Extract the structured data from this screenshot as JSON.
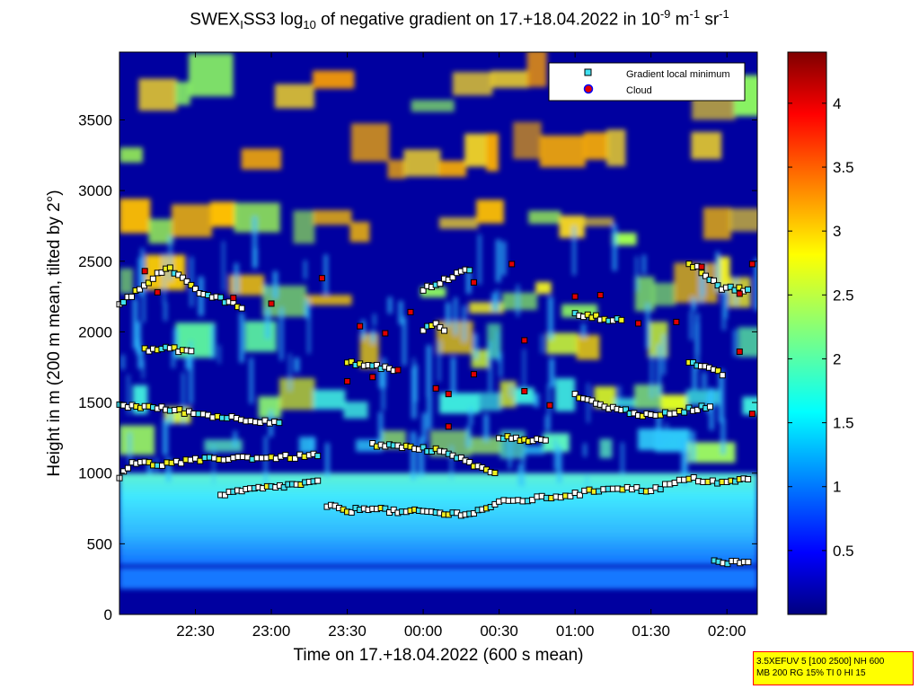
{
  "title": {
    "part1": "SWEX",
    "sub1": "I",
    "part2": "SS3 log",
    "sub2": "10",
    "part3": " of negative gradient on 17.+18.04.2022 in 10",
    "sup1": "-9",
    "part4": " m",
    "sup2": "-1",
    "part5": " sr",
    "sup3": "-1"
  },
  "info_box": {
    "line1": "3.5XEFUV 5 [100 2500] NH 600",
    "line2": "MB 200 RG 15% TI 0 HI 15"
  },
  "colors": {
    "background_field": "#0000a0",
    "cyan_band": "#40e0f0",
    "yellow_layer": "#f0f020",
    "gradient_marker": "#40e0f0",
    "cloud_marker": "#e00000",
    "cloud_marker_edge": "#0000ff"
  },
  "chart_data": {
    "type": "heatmap",
    "xlabel": "Time on 17.+18.04.2022 (600 s mean)",
    "ylabel": "Height in m (200 m mean, tilted by 2°)",
    "x_tick_labels": [
      "22:30",
      "23:00",
      "23:30",
      "00:00",
      "00:30",
      "01:00",
      "01:30",
      "02:00"
    ],
    "x_tick_minutes": [
      0,
      30,
      60,
      90,
      120,
      150,
      180,
      210
    ],
    "xlim_minutes": [
      -30,
      222
    ],
    "y_ticks": [
      0,
      500,
      1000,
      1500,
      2000,
      2500,
      3000,
      3500
    ],
    "ylim": [
      0,
      3980
    ],
    "colorbar": {
      "ticks": [
        0.5,
        1,
        1.5,
        2,
        2.5,
        3,
        3.5,
        4
      ],
      "tick_labels": [
        "0.5",
        "1",
        "1.5",
        "2",
        "2.5",
        "3",
        "3.5",
        "4"
      ],
      "range": [
        0,
        4.4
      ],
      "colormap": "jet"
    },
    "legend": {
      "placement": "top-right",
      "entries": [
        "Gradient local minimum",
        "Cloud"
      ]
    },
    "gradient_minimum_tracks": [
      {
        "points": [
          [
            -30,
            980
          ],
          [
            -25,
            1080
          ],
          [
            -15,
            1060
          ],
          [
            0,
            1090
          ],
          [
            15,
            1110
          ],
          [
            30,
            1110
          ],
          [
            45,
            1120
          ],
          [
            50,
            1140
          ]
        ]
      },
      {
        "points": [
          [
            10,
            840
          ],
          [
            20,
            880
          ],
          [
            30,
            900
          ],
          [
            40,
            920
          ],
          [
            50,
            940
          ]
        ]
      },
      {
        "points": [
          [
            52,
            770
          ],
          [
            60,
            730
          ],
          [
            70,
            760
          ],
          [
            80,
            720
          ],
          [
            90,
            730
          ],
          [
            100,
            710
          ],
          [
            110,
            720
          ],
          [
            120,
            790
          ],
          [
            135,
            820
          ],
          [
            150,
            850
          ],
          [
            165,
            900
          ],
          [
            180,
            880
          ],
          [
            195,
            960
          ],
          [
            210,
            930
          ],
          [
            220,
            970
          ]
        ]
      },
      {
        "points": [
          [
            70,
            1200
          ],
          [
            80,
            1190
          ],
          [
            90,
            1170
          ],
          [
            100,
            1150
          ],
          [
            110,
            1050
          ],
          [
            120,
            1000
          ]
        ]
      },
      {
        "points": [
          [
            -30,
            2200
          ],
          [
            -22,
            2300
          ],
          [
            -15,
            2420
          ],
          [
            -10,
            2450
          ],
          [
            0,
            2290
          ],
          [
            10,
            2230
          ],
          [
            20,
            2160
          ]
        ]
      },
      {
        "points": [
          [
            -30,
            1480
          ],
          [
            -20,
            1470
          ],
          [
            -10,
            1450
          ],
          [
            5,
            1410
          ],
          [
            20,
            1380
          ],
          [
            35,
            1360
          ]
        ]
      },
      {
        "points": [
          [
            -20,
            1870
          ],
          [
            -10,
            1880
          ],
          [
            0,
            1860
          ]
        ]
      },
      {
        "points": [
          [
            60,
            1780
          ],
          [
            70,
            1760
          ],
          [
            80,
            1730
          ]
        ]
      },
      {
        "points": [
          [
            90,
            2020
          ],
          [
            95,
            2050
          ],
          [
            100,
            2000
          ]
        ]
      },
      {
        "points": [
          [
            150,
            2120
          ],
          [
            160,
            2100
          ],
          [
            170,
            2070
          ]
        ]
      },
      {
        "points": [
          [
            150,
            1560
          ],
          [
            160,
            1480
          ],
          [
            170,
            1440
          ],
          [
            180,
            1400
          ],
          [
            195,
            1450
          ],
          [
            205,
            1480
          ]
        ]
      },
      {
        "points": [
          [
            195,
            2490
          ],
          [
            200,
            2430
          ],
          [
            208,
            2310
          ],
          [
            220,
            2300
          ]
        ]
      },
      {
        "points": [
          [
            195,
            1780
          ],
          [
            203,
            1740
          ],
          [
            210,
            1690
          ]
        ]
      },
      {
        "points": [
          [
            205,
            380
          ],
          [
            212,
            370
          ],
          [
            220,
            370
          ]
        ]
      },
      {
        "points": [
          [
            90,
            2300
          ],
          [
            100,
            2380
          ],
          [
            110,
            2460
          ]
        ]
      },
      {
        "points": [
          [
            120,
            1250
          ],
          [
            130,
            1240
          ],
          [
            140,
            1220
          ]
        ]
      }
    ],
    "clouds": [
      [
        -20,
        2430
      ],
      [
        -15,
        2280
      ],
      [
        15,
        2240
      ],
      [
        30,
        2200
      ],
      [
        70,
        1680
      ],
      [
        80,
        1730
      ],
      [
        95,
        1600
      ],
      [
        100,
        1560
      ],
      [
        85,
        2140
      ],
      [
        110,
        2350
      ],
      [
        125,
        2480
      ],
      [
        150,
        2250
      ],
      [
        160,
        2260
      ],
      [
        175,
        2060
      ],
      [
        190,
        2070
      ],
      [
        200,
        2460
      ],
      [
        215,
        2270
      ],
      [
        215,
        1860
      ],
      [
        220,
        1420
      ],
      [
        220,
        2480
      ],
      [
        130,
        1580
      ],
      [
        140,
        1480
      ],
      [
        100,
        1330
      ],
      [
        60,
        1650
      ],
      [
        50,
        2380
      ],
      [
        130,
        1940
      ],
      [
        75,
        1990
      ],
      [
        110,
        1700
      ],
      [
        65,
        2040
      ]
    ]
  }
}
